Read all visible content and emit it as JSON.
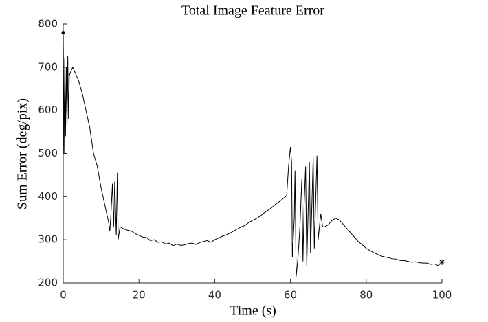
{
  "chart_data": {
    "type": "line",
    "title": "Total Image Feature Error",
    "x_label": "Time (s)",
    "y_label": "Sum Error (deg/pix)",
    "x": [
      0,
      0.2,
      0.4,
      0.6,
      0.8,
      1.0,
      1.2,
      1.4,
      1.6,
      2,
      2.5,
      3,
      4,
      5,
      6,
      7,
      8,
      9,
      10,
      11,
      12,
      12.3,
      12.6,
      13,
      13.3,
      13.6,
      14,
      14.3,
      14.5,
      15,
      16,
      17,
      18,
      19,
      20,
      21,
      22,
      23,
      24,
      25,
      26,
      27,
      28,
      29,
      30,
      31,
      32,
      33,
      34,
      35,
      36,
      37,
      38,
      39,
      40,
      41,
      42,
      43,
      44,
      45,
      46,
      47,
      48,
      49,
      50,
      51,
      52,
      53,
      54,
      55,
      56,
      57,
      58,
      59,
      59.5,
      60,
      60.3,
      60.5,
      61,
      61.2,
      61.5,
      62,
      62.5,
      63,
      63.3,
      63.6,
      64,
      64.3,
      65,
      65.3,
      66,
      66.3,
      67,
      67.3,
      68,
      68.5,
      69,
      70,
      71,
      72,
      73,
      74,
      75,
      76,
      77,
      78,
      79,
      80,
      81,
      82,
      83,
      84,
      85,
      86,
      87,
      88,
      89,
      90,
      91,
      92,
      93,
      94,
      95,
      96,
      97,
      98,
      99,
      100
    ],
    "series": [
      {
        "color": "#000000",
        "values": [
          780,
          500,
          720,
          540,
          700,
          560,
          725,
          580,
          680,
          690,
          700,
          690,
          670,
          640,
          600,
          560,
          500,
          470,
          420,
          380,
          340,
          320,
          360,
          430,
          330,
          435,
          310,
          455,
          300,
          330,
          325,
          322,
          320,
          314,
          310,
          306,
          305,
          298,
          300,
          294,
          295,
          290,
          292,
          286,
          290,
          287,
          288,
          291,
          292,
          289,
          293,
          296,
          298,
          294,
          300,
          304,
          308,
          311,
          315,
          320,
          325,
          330,
          333,
          340,
          345,
          349,
          355,
          362,
          368,
          374,
          382,
          388,
          395,
          402,
          470,
          515,
          480,
          260,
          350,
          460,
          215,
          260,
          330,
          440,
          250,
          380,
          470,
          240,
          480,
          270,
          490,
          280,
          495,
          300,
          360,
          330,
          330,
          335,
          345,
          350,
          345,
          335,
          325,
          315,
          305,
          295,
          288,
          280,
          275,
          270,
          266,
          262,
          260,
          258,
          256,
          255,
          252,
          252,
          250,
          248,
          249,
          247,
          246,
          246,
          243,
          244,
          240,
          248
        ]
      }
    ],
    "xlim": [
      0,
      100
    ],
    "xticks": [
      0,
      20,
      40,
      60,
      80,
      100
    ],
    "ylim": [
      200,
      800
    ],
    "yticks": [
      200,
      300,
      400,
      500,
      600,
      700,
      800
    ]
  }
}
